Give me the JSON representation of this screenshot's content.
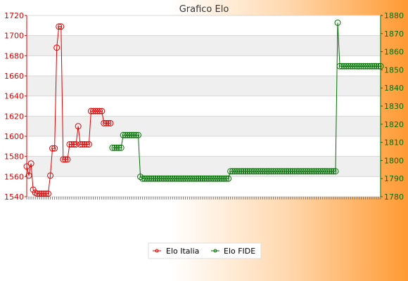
{
  "chart_data": {
    "type": "line",
    "title": "Grafico Elo",
    "xlabel": "",
    "y_left_label": "",
    "y_right_label": "",
    "y_left": {
      "min": 1540,
      "max": 1720,
      "step": 20
    },
    "y_right": {
      "min": 1780,
      "max": 1880,
      "step": 10
    },
    "grid": true,
    "legend_position": "bottom-center",
    "series": [
      {
        "name": "Elo Italia",
        "axis": "left",
        "color": "#e00000",
        "values": [
          1570,
          1561,
          1573,
          1547,
          1544,
          1543,
          1543,
          1543,
          1543,
          1543,
          1543,
          1561,
          1588,
          1588,
          1688,
          1709,
          1709,
          1577,
          1577,
          1577,
          1592,
          1592,
          1592,
          1592,
          1610,
          1592,
          1592,
          1592,
          1592,
          1592,
          1625,
          1625,
          1625,
          1625,
          1625,
          1625,
          1613,
          1613,
          1613,
          1613
        ]
      },
      {
        "name": "Elo FIDE",
        "axis": "right",
        "color": "#007000",
        "start_index": 40,
        "values": [
          1807,
          1807,
          1807,
          1807,
          1807,
          1814,
          1814,
          1814,
          1814,
          1814,
          1814,
          1814,
          1814,
          1791,
          1790,
          1790,
          1790,
          1790,
          1790,
          1790,
          1790,
          1790,
          1790,
          1790,
          1790,
          1790,
          1790,
          1790,
          1790,
          1790,
          1790,
          1790,
          1790,
          1790,
          1790,
          1790,
          1790,
          1790,
          1790,
          1790,
          1790,
          1790,
          1790,
          1790,
          1790,
          1790,
          1790,
          1790,
          1790,
          1790,
          1790,
          1790,
          1790,
          1790,
          1790,
          1794,
          1794,
          1794,
          1794,
          1794,
          1794,
          1794,
          1794,
          1794,
          1794,
          1794,
          1794,
          1794,
          1794,
          1794,
          1794,
          1794,
          1794,
          1794,
          1794,
          1794,
          1794,
          1794,
          1794,
          1794,
          1794,
          1794,
          1794,
          1794,
          1794,
          1794,
          1794,
          1794,
          1794,
          1794,
          1794,
          1794,
          1794,
          1794,
          1794,
          1794,
          1794,
          1794,
          1794,
          1794,
          1794,
          1794,
          1794,
          1794,
          1794,
          1876,
          1852,
          1852,
          1852,
          1852,
          1852,
          1852,
          1852,
          1852,
          1852,
          1852,
          1852,
          1852,
          1852,
          1852,
          1852,
          1852,
          1852,
          1852,
          1852,
          1852
        ]
      }
    ]
  },
  "legend": {
    "items": [
      "Elo Italia",
      "Elo FIDE"
    ]
  }
}
